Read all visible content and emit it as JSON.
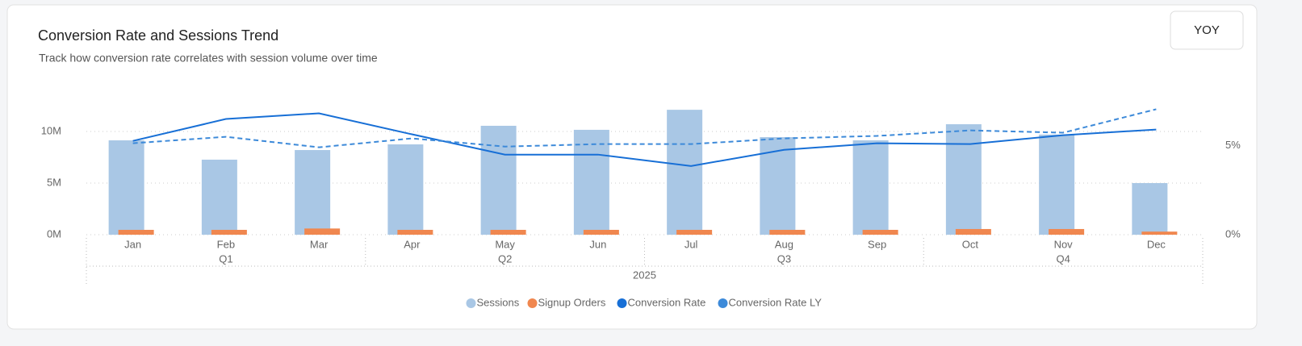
{
  "controls": {
    "button": "YOY"
  },
  "chart_data": {
    "type": "combo",
    "title": "Conversion Rate and Sessions Trend",
    "subtitle": "Track how conversion rate correlates with session volume over time",
    "categories": [
      "Jan",
      "Feb",
      "Mar",
      "Apr",
      "May",
      "Jun",
      "Jul",
      "Aug",
      "Sep",
      "Oct",
      "Nov",
      "Dec"
    ],
    "quarters": [
      "Q1",
      "Q2",
      "Q3",
      "Q4"
    ],
    "year": "2025",
    "series": [
      {
        "name": "Sessions",
        "type": "bar",
        "color": "#a9c7e5",
        "values": [
          9140000,
          7270000,
          8200000,
          8750000,
          10550000,
          10160000,
          12100000,
          9450000,
          9140000,
          10700000,
          9700000,
          5000000
        ]
      },
      {
        "name": "Signup Orders",
        "type": "bar",
        "color": "#f0874f",
        "values": [
          470000,
          470000,
          600000,
          470000,
          470000,
          470000,
          470000,
          470000,
          470000,
          550000,
          550000,
          300000
        ]
      },
      {
        "name": "Conversion Rate",
        "type": "line",
        "color": "#176fd6",
        "axis": "y2",
        "values": [
          5.27,
          6.5,
          6.82,
          5.64,
          4.5,
          4.5,
          3.86,
          4.77,
          5.14,
          5.09,
          5.59,
          5.91
        ]
      },
      {
        "name": "Conversion Rate LY",
        "type": "line",
        "color": "#3d8ad9",
        "dashed": true,
        "axis": "y2",
        "values": [
          5.14,
          5.5,
          4.91,
          5.41,
          4.95,
          5.09,
          5.09,
          5.41,
          5.55,
          5.86,
          5.73,
          7.05
        ]
      }
    ],
    "ylim": [
      0,
      15000000
    ],
    "yticks": [
      {
        "value": 0,
        "label": "0M"
      },
      {
        "value": 5000000,
        "label": "5M"
      },
      {
        "value": 10000000,
        "label": "10M"
      }
    ],
    "y2lim": [
      0,
      8.7
    ],
    "y2ticks": [
      {
        "value": 0,
        "label": "0%"
      },
      {
        "value": 5,
        "label": "5%"
      }
    ],
    "grid": true,
    "legend": "bottom"
  }
}
